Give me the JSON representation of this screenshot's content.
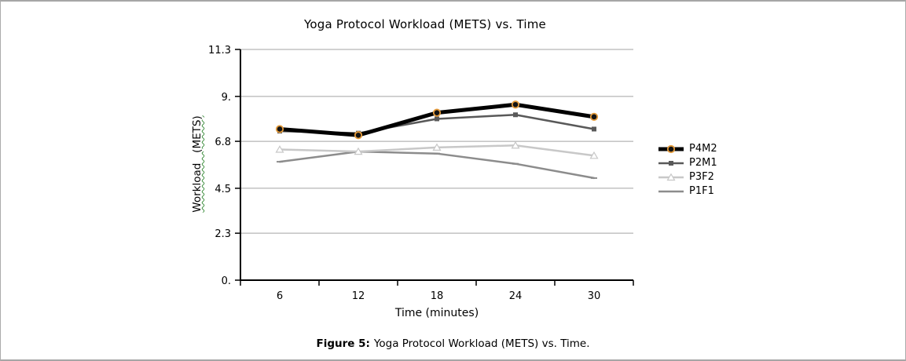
{
  "chart_data": {
    "type": "line",
    "title": "Yoga Protocol Workload (METS) vs. Time",
    "xlabel": "Time (minutes)",
    "ylabel": "Workload   (METS)",
    "x": [
      6,
      12,
      18,
      24,
      30
    ],
    "x_tick_labels": [
      "6",
      "12",
      "18",
      "24",
      "30"
    ],
    "ylim": [
      0,
      11.3
    ],
    "y_ticks": [
      {
        "value": 0,
        "label": "0."
      },
      {
        "value": 2.3,
        "label": "2.3"
      },
      {
        "value": 4.5,
        "label": "4.5"
      },
      {
        "value": 6.8,
        "label": "6.8"
      },
      {
        "value": 9,
        "label": "9."
      },
      {
        "value": 11.3,
        "label": "11.3"
      }
    ],
    "grid": true,
    "legend_position": "right",
    "gridline_color": "#a3a3a3",
    "marker_accent_color": "#e39a3b",
    "series": [
      {
        "name": "P4M2",
        "values": [
          7.4,
          7.1,
          8.2,
          8.6,
          8.0
        ],
        "color": "#000000",
        "marker": "circle-orange",
        "width": 5
      },
      {
        "name": "P2M1",
        "values": [
          7.3,
          7.2,
          7.9,
          8.1,
          7.4
        ],
        "color": "#595959",
        "marker": "square",
        "width": 2.5
      },
      {
        "name": "P3F2",
        "values": [
          6.4,
          6.3,
          6.5,
          6.6,
          6.1
        ],
        "color": "#c8c8c8",
        "marker": "triangle",
        "width": 2.5
      },
      {
        "name": "P1F1",
        "values": [
          5.8,
          6.3,
          6.2,
          5.7,
          5.0
        ],
        "color": "#8c8c8c",
        "marker": "dash",
        "width": 2.5
      }
    ]
  },
  "caption": {
    "label": "Figure 5:",
    "text": "Yoga Protocol Workload (METS) vs. Time."
  }
}
